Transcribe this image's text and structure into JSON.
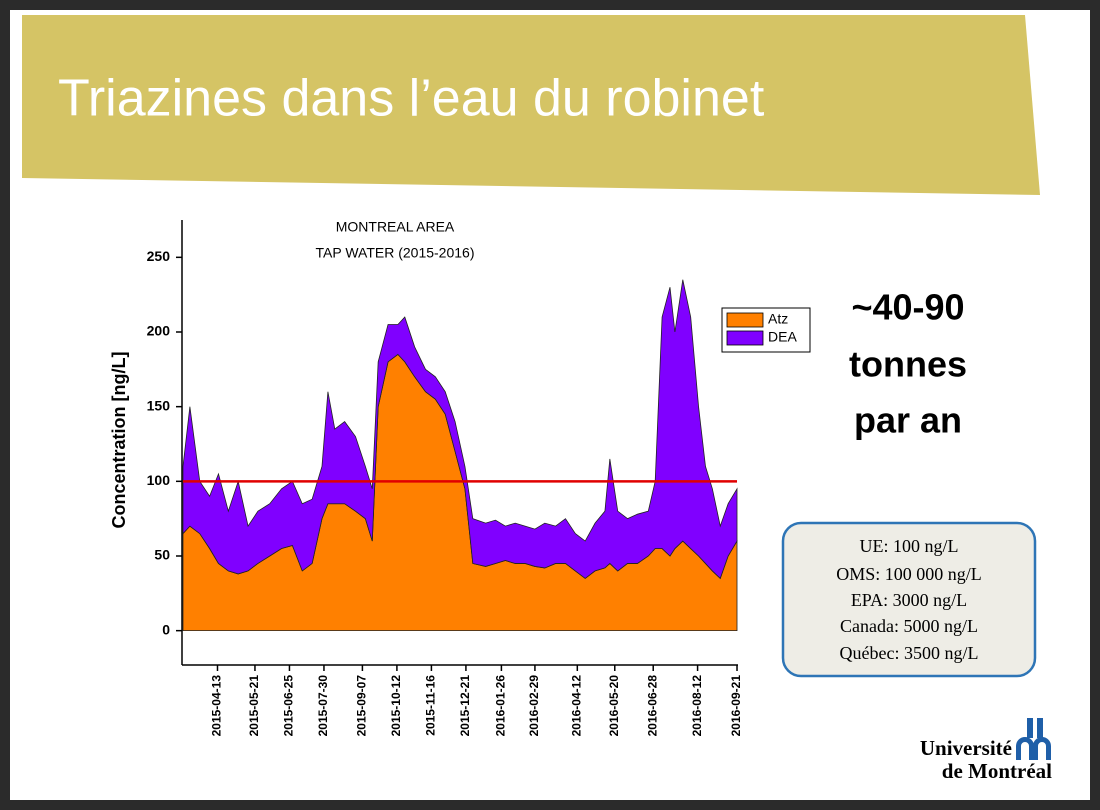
{
  "slide": {
    "title": "Triazines dans l’eau du robinet",
    "highlight": [
      "~40-90",
      "tonnes",
      "par an"
    ],
    "limits": [
      "UE: 100 ng/L",
      "OMS: 100 000 ng/L",
      "EPA: 3000 ng/L",
      "Canada: 5000 ng/L",
      "Québec: 3500 ng/L"
    ],
    "logo": [
      "Université",
      "de Montréal"
    ]
  },
  "chart_data": {
    "type": "stacked_area",
    "title": "MONTREAL AREA",
    "subtitle": "TAP WATER (2015-2016)",
    "y_label": "Concentration [ng/L]",
    "x": [
      "2015-03-09",
      "2015-03-16",
      "2015-03-26",
      "2015-04-05",
      "2015-04-14",
      "2015-04-24",
      "2015-05-04",
      "2015-05-14",
      "2015-05-24",
      "2015-06-05",
      "2015-06-17",
      "2015-06-28",
      "2015-07-08",
      "2015-07-18",
      "2015-07-28",
      "2015-08-03",
      "2015-08-10",
      "2015-08-20",
      "2015-08-31",
      "2015-09-10",
      "2015-09-17",
      "2015-09-23",
      "2015-10-03",
      "2015-10-13",
      "2015-10-20",
      "2015-10-30",
      "2015-11-10",
      "2015-11-20",
      "2015-11-30",
      "2015-12-10",
      "2015-12-20",
      "2015-12-28",
      "2016-01-10",
      "2016-01-20",
      "2016-01-30",
      "2016-02-09",
      "2016-02-19",
      "2016-02-29",
      "2016-03-10",
      "2016-03-21",
      "2016-03-31",
      "2016-04-10",
      "2016-04-20",
      "2016-04-30",
      "2016-05-10",
      "2016-05-15",
      "2016-05-23",
      "2016-06-02",
      "2016-06-12",
      "2016-06-23",
      "2016-06-30",
      "2016-07-07",
      "2016-07-15",
      "2016-07-20",
      "2016-07-28",
      "2016-08-05",
      "2016-08-13",
      "2016-08-20",
      "2016-08-27",
      "2016-09-04",
      "2016-09-12",
      "2016-09-21"
    ],
    "series": [
      {
        "name": "Atz",
        "color": "#ff8000",
        "values": [
          65,
          70,
          65,
          55,
          45,
          40,
          38,
          40,
          45,
          50,
          55,
          57,
          40,
          45,
          75,
          85,
          85,
          85,
          80,
          75,
          60,
          150,
          180,
          185,
          180,
          170,
          160,
          155,
          145,
          120,
          95,
          45,
          43,
          45,
          47,
          45,
          45,
          43,
          42,
          45,
          45,
          40,
          35,
          40,
          42,
          45,
          40,
          45,
          45,
          50,
          55,
          55,
          50,
          55,
          60,
          55,
          50,
          45,
          40,
          35,
          50,
          60
        ]
      },
      {
        "name": "DEA",
        "color": "#8000ff",
        "values": [
          45,
          80,
          35,
          35,
          60,
          40,
          62,
          30,
          35,
          35,
          40,
          43,
          45,
          43,
          35,
          75,
          50,
          55,
          50,
          35,
          35,
          30,
          25,
          20,
          30,
          20,
          15,
          15,
          15,
          20,
          15,
          30,
          29,
          29,
          23,
          27,
          25,
          25,
          30,
          25,
          30,
          25,
          25,
          32,
          38,
          70,
          40,
          30,
          33,
          30,
          45,
          155,
          180,
          145,
          175,
          155,
          100,
          65,
          55,
          35,
          35,
          35
        ]
      }
    ],
    "reference_line": {
      "value": 100,
      "color": "#e00000"
    },
    "xlim": [
      "2015-03-08",
      "2016-09-22"
    ],
    "xticks": [
      "2015-04-13",
      "2015-05-21",
      "2015-06-25",
      "2015-07-30",
      "2015-09-07",
      "2015-10-12",
      "2015-11-16",
      "2015-12-21",
      "2016-01-26",
      "2016-02-29",
      "2016-04-12",
      "2016-05-20",
      "2016-06-28",
      "2016-08-12",
      "2016-09-21"
    ],
    "ylim": [
      -23,
      275
    ],
    "yticks": [
      0,
      50,
      100,
      150,
      200,
      250
    ],
    "legend": "upper right"
  }
}
